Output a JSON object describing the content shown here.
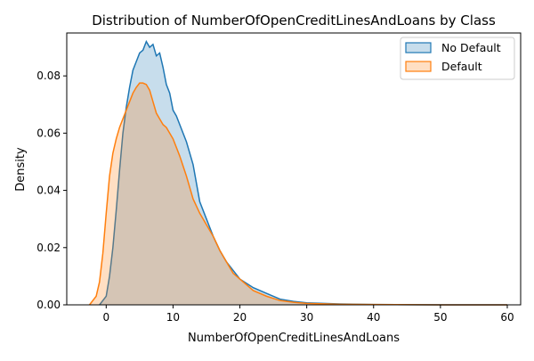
{
  "chart_data": {
    "type": "area",
    "title": "Distribution of NumberOfOpenCreditLinesAndLoans by Class",
    "xlabel": "NumberOfOpenCreditLinesAndLoans",
    "ylabel": "Density",
    "xlim": [
      -5.9,
      62
    ],
    "ylim": [
      0,
      0.095
    ],
    "xticks": [
      0,
      10,
      20,
      30,
      40,
      50,
      60
    ],
    "yticks": [
      0.0,
      0.02,
      0.04,
      0.06,
      0.08
    ],
    "ytick_labels": [
      "0.00",
      "0.02",
      "0.04",
      "0.06",
      "0.08"
    ],
    "grid": false,
    "legend_position": "top-right",
    "series": [
      {
        "name": "No Default",
        "color": "#1f77b4",
        "fill": "#1f77b4",
        "fill_opacity": 0.25,
        "x": [
          -1.0,
          0.0,
          0.5,
          1.0,
          1.5,
          2.0,
          2.5,
          3.0,
          3.5,
          4.0,
          4.5,
          5.0,
          5.5,
          6.0,
          6.5,
          7.0,
          7.5,
          8.0,
          8.5,
          9.0,
          9.5,
          10.0,
          10.5,
          11.0,
          11.5,
          12.0,
          13.0,
          14.0,
          15.0,
          16.0,
          17.0,
          18.0,
          19.0,
          20.0,
          22.0,
          24.0,
          26.0,
          28.0,
          30.0,
          35.0,
          40.0,
          50.0,
          60.0
        ],
        "y": [
          0.0,
          0.003,
          0.01,
          0.02,
          0.033,
          0.047,
          0.06,
          0.069,
          0.076,
          0.082,
          0.085,
          0.088,
          0.089,
          0.092,
          0.09,
          0.091,
          0.087,
          0.088,
          0.083,
          0.077,
          0.074,
          0.068,
          0.066,
          0.063,
          0.06,
          0.057,
          0.049,
          0.036,
          0.03,
          0.024,
          0.019,
          0.015,
          0.012,
          0.009,
          0.006,
          0.004,
          0.002,
          0.0012,
          0.0007,
          0.0003,
          0.0001,
          0.0,
          0.0
        ]
      },
      {
        "name": "Default",
        "color": "#ff7f0e",
        "fill": "#ff7f0e",
        "fill_opacity": 0.25,
        "x": [
          -2.5,
          -1.5,
          -1.0,
          -0.5,
          0.0,
          0.5,
          1.0,
          1.5,
          2.0,
          2.5,
          3.0,
          3.5,
          4.0,
          4.5,
          5.0,
          5.5,
          6.0,
          6.5,
          7.0,
          7.5,
          8.0,
          8.5,
          9.0,
          10.0,
          11.0,
          12.0,
          13.0,
          14.0,
          15.0,
          16.0,
          17.0,
          18.0,
          19.0,
          20.0,
          22.0,
          24.0,
          26.0,
          28.0,
          30.0,
          35.0,
          40.0,
          50.0,
          60.0
        ],
        "y": [
          0.0,
          0.003,
          0.008,
          0.018,
          0.032,
          0.045,
          0.053,
          0.058,
          0.062,
          0.065,
          0.068,
          0.071,
          0.074,
          0.076,
          0.0775,
          0.0775,
          0.077,
          0.075,
          0.071,
          0.067,
          0.065,
          0.063,
          0.062,
          0.058,
          0.052,
          0.045,
          0.037,
          0.032,
          0.028,
          0.024,
          0.019,
          0.015,
          0.011,
          0.009,
          0.005,
          0.003,
          0.0015,
          0.0009,
          0.0005,
          0.0002,
          0.0001,
          0.0,
          0.0
        ]
      }
    ]
  }
}
